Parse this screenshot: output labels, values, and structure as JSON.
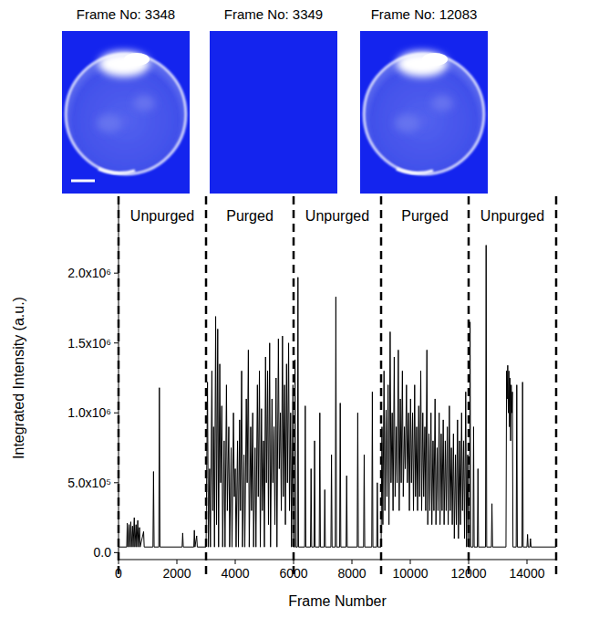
{
  "chart_data": {
    "type": "line",
    "x_label": "Frame Number",
    "y_label": "Integrated Intensity (a.u.)",
    "xlim": [
      0,
      15000
    ],
    "xticks": [
      0,
      2000,
      4000,
      6000,
      8000,
      10000,
      12000,
      14000
    ],
    "ylim": [
      -50000,
      2550000
    ],
    "yticks": [
      {
        "value": 0,
        "label": "0.0"
      },
      {
        "value": 500000,
        "label": "5.0x10⁵"
      },
      {
        "value": 1000000,
        "label": "1.0x10⁶"
      },
      {
        "value": 1500000,
        "label": "1.5x10⁶"
      },
      {
        "value": 2000000,
        "label": "2.0x10⁶"
      }
    ],
    "annotations": [
      {
        "text": "Unpurged",
        "x_start": 0,
        "x_end": 3000
      },
      {
        "text": "Purged",
        "x_start": 3000,
        "x_end": 6000
      },
      {
        "text": "Unpurged",
        "x_start": 6000,
        "x_end": 9000
      },
      {
        "text": "Purged",
        "x_start": 9000,
        "x_end": 12000
      },
      {
        "text": "Unpurged",
        "x_start": 12000,
        "x_end": 15000
      }
    ],
    "x": [
      0,
      280,
      300,
      320,
      360,
      380,
      420,
      440,
      480,
      500,
      540,
      560,
      600,
      620,
      660,
      680,
      720,
      740,
      860,
      880,
      1180,
      1200,
      1220,
      1380,
      1400,
      1420,
      2180,
      2200,
      2220,
      2580,
      2600,
      2620,
      2680,
      2700,
      3000,
      3050,
      3080,
      3120,
      3150,
      3200,
      3230,
      3260,
      3290,
      3330,
      3360,
      3400,
      3430,
      3470,
      3500,
      3540,
      3570,
      3620,
      3650,
      3700,
      3730,
      3780,
      3810,
      3860,
      3890,
      3940,
      3970,
      4000,
      4030,
      4080,
      4110,
      4150,
      4180,
      4220,
      4250,
      4300,
      4330,
      4380,
      4410,
      4450,
      4480,
      4530,
      4560,
      4600,
      4630,
      4680,
      4710,
      4760,
      4790,
      4830,
      4860,
      4900,
      4930,
      4970,
      5000,
      5040,
      5070,
      5110,
      5140,
      5180,
      5210,
      5260,
      5290,
      5330,
      5360,
      5400,
      5430,
      5480,
      5510,
      5550,
      5580,
      5620,
      5650,
      5690,
      5720,
      5760,
      5790,
      5830,
      5860,
      5900,
      5930,
      5980,
      6000,
      6030,
      6050,
      6070,
      6130,
      6150,
      6170,
      6380,
      6400,
      6420,
      6580,
      6600,
      6620,
      6700,
      6720,
      6740,
      6880,
      6900,
      6920,
      7050,
      7070,
      7090,
      7280,
      7300,
      7320,
      7430,
      7450,
      7470,
      7580,
      7600,
      7620,
      7800,
      7820,
      7840,
      8180,
      8200,
      8220,
      8400,
      8420,
      8440,
      8680,
      8700,
      8720,
      8850,
      8870,
      8890,
      9000,
      9030,
      9060,
      9100,
      9130,
      9170,
      9200,
      9240,
      9270,
      9310,
      9340,
      9380,
      9410,
      9450,
      9480,
      9520,
      9550,
      9590,
      9620,
      9660,
      9690,
      9730,
      9760,
      9800,
      9830,
      9870,
      9900,
      9940,
      9970,
      10010,
      10040,
      10080,
      10110,
      10150,
      10180,
      10220,
      10250,
      10290,
      10320,
      10360,
      10390,
      10430,
      10460,
      10500,
      10530,
      10570,
      10600,
      10640,
      10670,
      10710,
      10740,
      10780,
      10810,
      10850,
      10880,
      10920,
      10950,
      10990,
      11020,
      11060,
      11090,
      11130,
      11160,
      11200,
      11230,
      11270,
      11300,
      11340,
      11370,
      11410,
      11440,
      11480,
      11510,
      11550,
      11580,
      11620,
      11650,
      11690,
      11720,
      11760,
      11790,
      11830,
      11860,
      11900,
      11930,
      11970,
      12000,
      12030,
      12050,
      12070,
      12150,
      12170,
      12190,
      12300,
      12320,
      12340,
      12580,
      12600,
      12620,
      12780,
      12800,
      12820,
      13280,
      13300,
      13320,
      13340,
      13360,
      13380,
      13400,
      13420,
      13440,
      13460,
      13480,
      13500,
      13520,
      13630,
      13650,
      13670,
      13830,
      13850,
      13870,
      14000,
      14020,
      14040,
      14100,
      14120,
      14140,
      15000
    ],
    "series": [
      {
        "name": "Integrated Intensity",
        "color": "#000000",
        "values": [
          40000,
          40000,
          210000,
          40000,
          200000,
          40000,
          220000,
          40000,
          190000,
          40000,
          250000,
          40000,
          200000,
          40000,
          230000,
          40000,
          180000,
          40000,
          150000,
          40000,
          40000,
          580000,
          40000,
          40000,
          1180000,
          40000,
          40000,
          140000,
          40000,
          40000,
          160000,
          40000,
          120000,
          40000,
          40000,
          1220000,
          40000,
          600000,
          40000,
          1300000,
          300000,
          900000,
          40000,
          1690000,
          200000,
          1600000,
          40000,
          1350000,
          500000,
          1050000,
          40000,
          800000,
          40000,
          1200000,
          300000,
          900000,
          40000,
          750000,
          40000,
          1000000,
          400000,
          600000,
          40000,
          800000,
          40000,
          950000,
          300000,
          1300000,
          40000,
          700000,
          40000,
          1100000,
          500000,
          1450000,
          40000,
          900000,
          300000,
          1000000,
          40000,
          750000,
          40000,
          1200000,
          400000,
          1300000,
          40000,
          1030000,
          300000,
          800000,
          40000,
          1400000,
          500000,
          1300000,
          200000,
          1500000,
          40000,
          1100000,
          500000,
          900000,
          200000,
          1250000,
          40000,
          1530000,
          600000,
          1000000,
          300000,
          1550000,
          400000,
          1200000,
          200000,
          1350000,
          500000,
          1500000,
          300000,
          1000000,
          40000,
          1200000,
          40000,
          40000,
          1380000,
          40000,
          40000,
          1970000,
          40000,
          40000,
          1050000,
          40000,
          40000,
          600000,
          40000,
          40000,
          800000,
          40000,
          40000,
          1000000,
          40000,
          40000,
          450000,
          40000,
          40000,
          700000,
          40000,
          40000,
          1830000,
          40000,
          40000,
          1070000,
          40000,
          40000,
          550000,
          40000,
          40000,
          1000000,
          40000,
          40000,
          700000,
          40000,
          40000,
          1150000,
          40000,
          40000,
          500000,
          40000,
          40000,
          900000,
          200000,
          1300000,
          300000,
          1020000,
          400000,
          1200000,
          200000,
          1580000,
          500000,
          1000000,
          300000,
          1400000,
          400000,
          900000,
          500000,
          1450000,
          300000,
          1100000,
          500000,
          1300000,
          400000,
          900000,
          600000,
          1200000,
          500000,
          1000000,
          300000,
          1100000,
          500000,
          1000000,
          300000,
          1200000,
          400000,
          900000,
          300000,
          1050000,
          400000,
          1300000,
          300000,
          1000000,
          400000,
          900000,
          300000,
          1450000,
          200000,
          850000,
          300000,
          1000000,
          200000,
          800000,
          300000,
          1100000,
          200000,
          750000,
          300000,
          1000000,
          200000,
          850000,
          300000,
          950000,
          200000,
          800000,
          300000,
          900000,
          200000,
          1050000,
          300000,
          750000,
          200000,
          850000,
          100000,
          700000,
          200000,
          950000,
          100000,
          800000,
          200000,
          1000000,
          300000,
          800000,
          100000,
          1150000,
          40000,
          700000,
          40000,
          40000,
          1650000,
          40000,
          40000,
          900000,
          40000,
          40000,
          600000,
          40000,
          40000,
          2200000,
          40000,
          40000,
          350000,
          40000,
          40000,
          1300000,
          1100000,
          1340000,
          1000000,
          1300000,
          900000,
          1250000,
          800000,
          1200000,
          1000000,
          1150000,
          40000,
          40000,
          1200000,
          40000,
          40000,
          1220000,
          40000,
          40000,
          130000,
          40000,
          40000,
          100000,
          40000,
          40000
        ]
      }
    ]
  },
  "panels": [
    {
      "title": "Frame No: 3348",
      "type": "droplet"
    },
    {
      "title": "Frame No: 3349",
      "type": "blank"
    },
    {
      "title": "Frame No: 12083",
      "type": "droplet"
    }
  ]
}
